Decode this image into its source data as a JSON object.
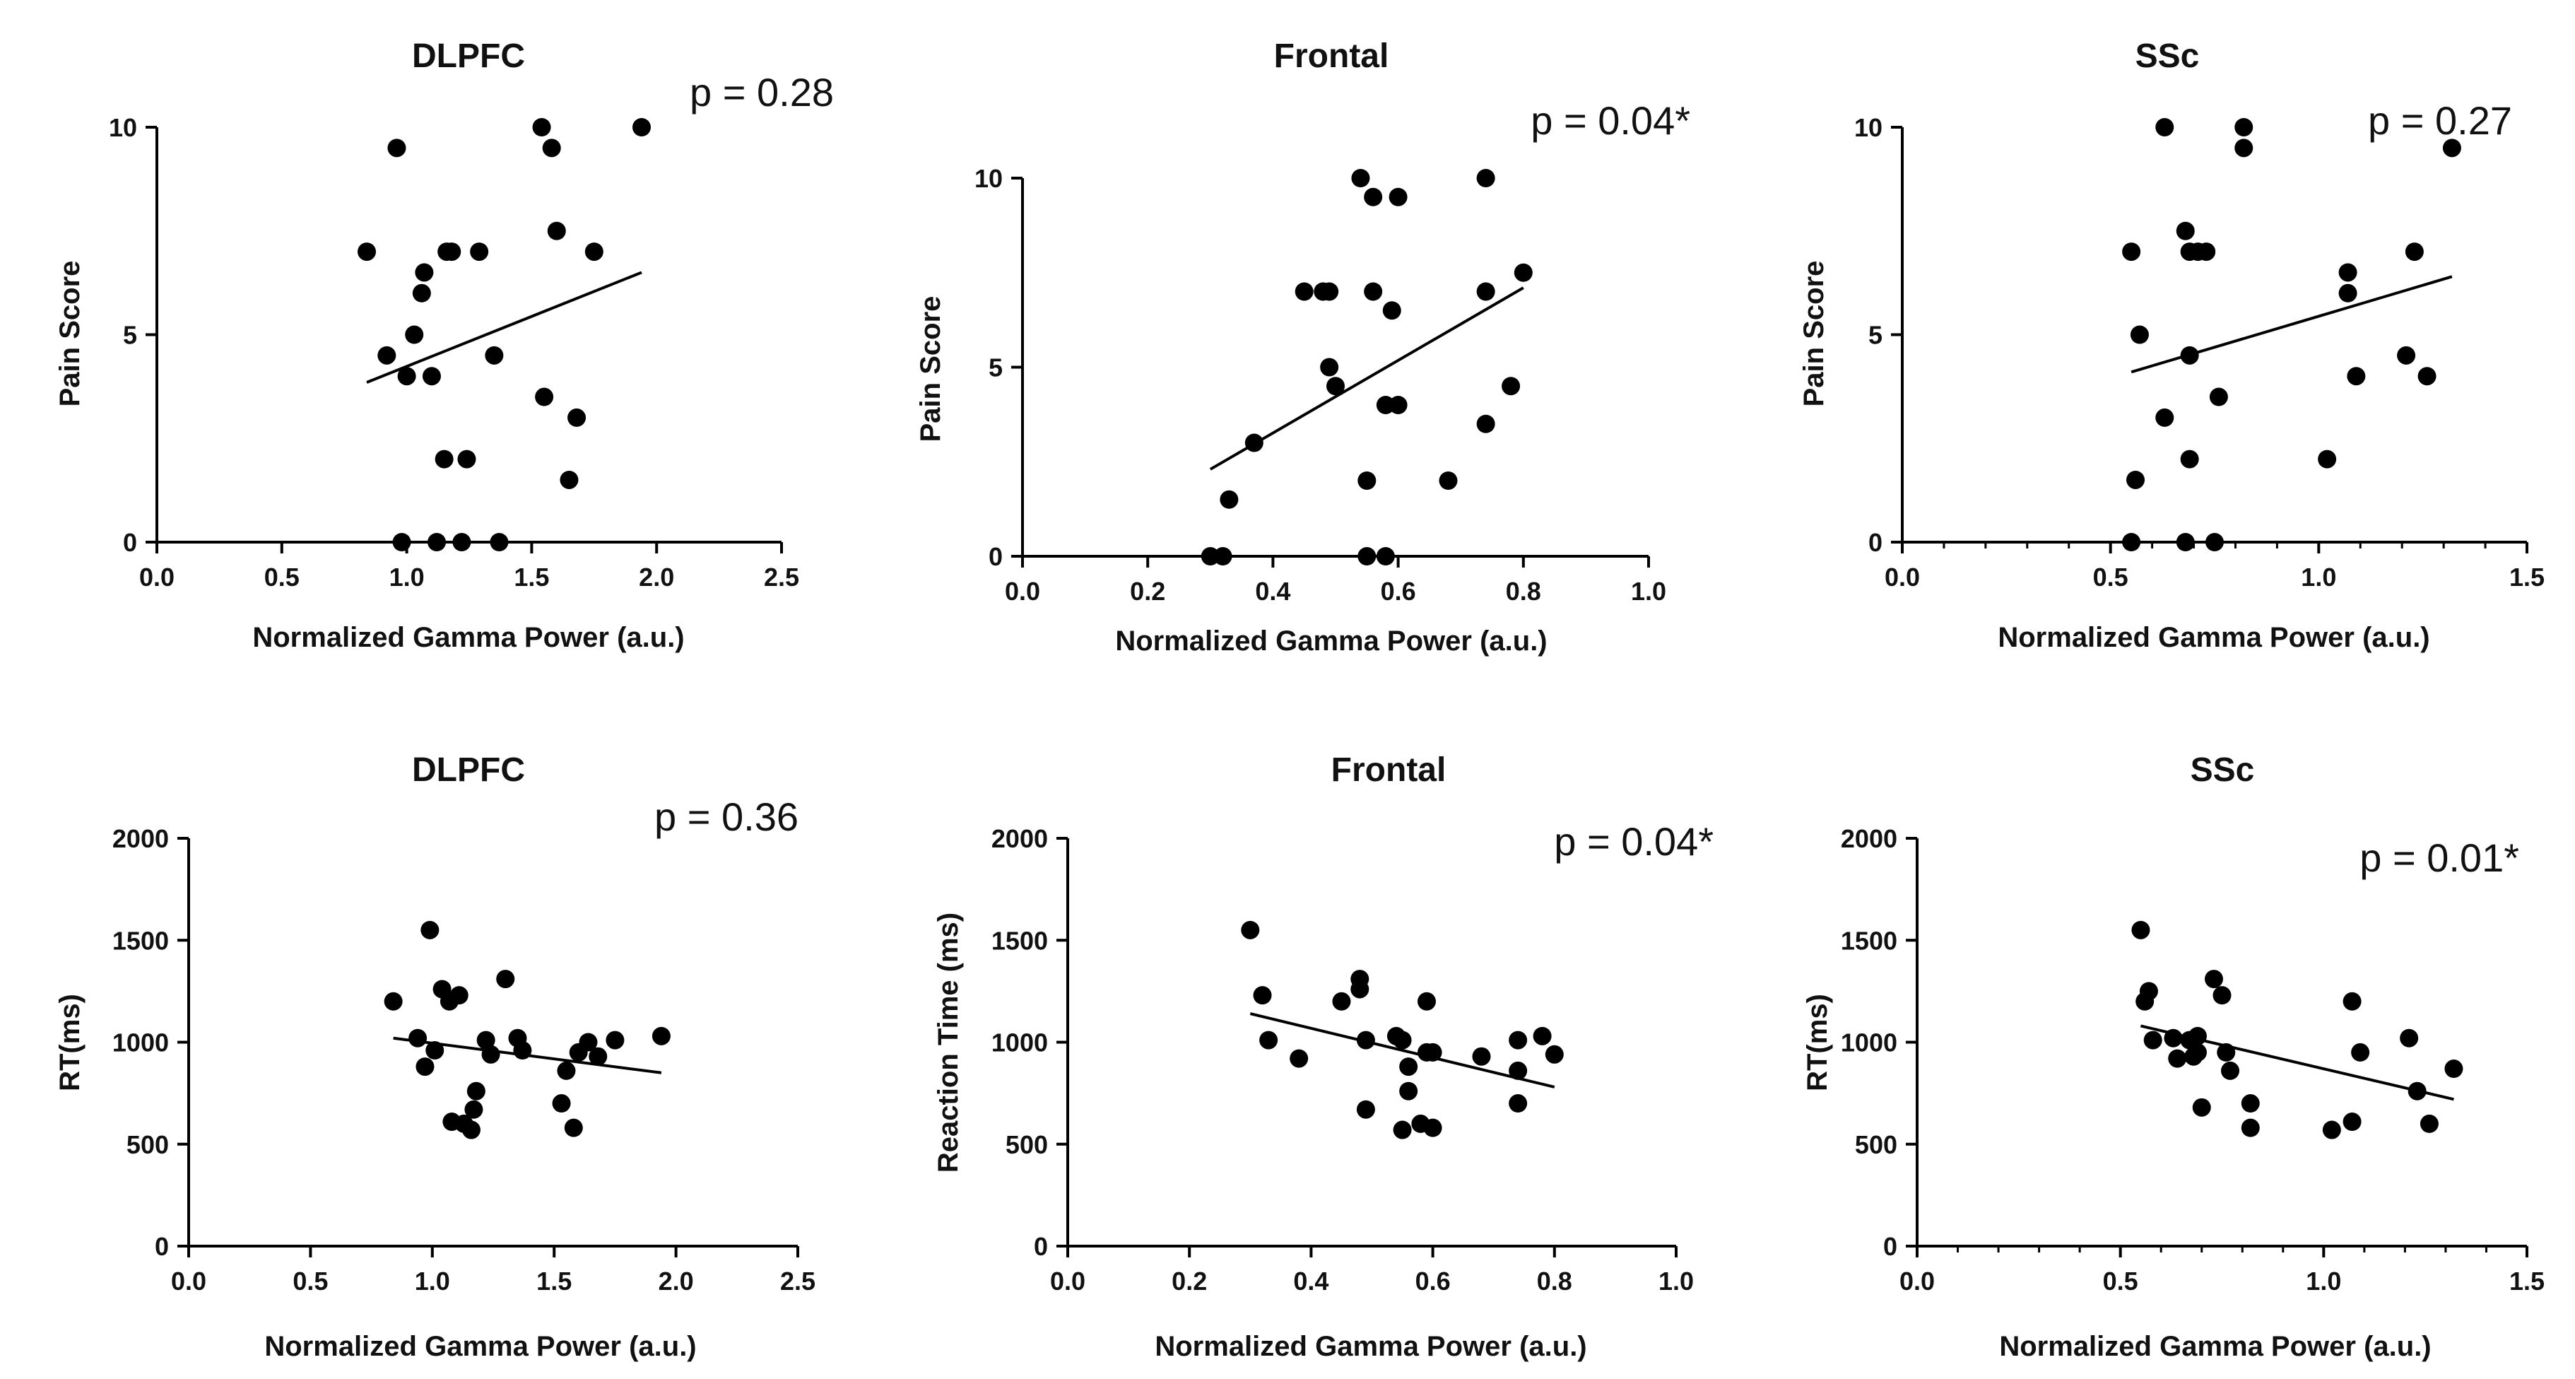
{
  "chart_data": [
    {
      "type": "scatter",
      "title": "DLPFC",
      "xlabel": "Normalized Gamma Power (a.u.)",
      "ylabel": "Pain Score",
      "annotation": "p = 0.28",
      "xlim": [
        0,
        2.5
      ],
      "ylim": [
        0,
        10
      ],
      "xticks": [
        "0.0",
        "0.5",
        "1.0",
        "1.5",
        "2.0",
        "2.5"
      ],
      "yticks": [
        "0",
        "5",
        "10"
      ],
      "points": [
        [
          0.84,
          7
        ],
        [
          0.92,
          4.5
        ],
        [
          0.96,
          9.5
        ],
        [
          0.98,
          0
        ],
        [
          1.0,
          4
        ],
        [
          1.03,
          5
        ],
        [
          1.06,
          6
        ],
        [
          1.07,
          6.5
        ],
        [
          1.1,
          4
        ],
        [
          1.12,
          0
        ],
        [
          1.15,
          2
        ],
        [
          1.16,
          7
        ],
        [
          1.18,
          7
        ],
        [
          1.22,
          0
        ],
        [
          1.24,
          2
        ],
        [
          1.29,
          7
        ],
        [
          1.35,
          4.5
        ],
        [
          1.37,
          0
        ],
        [
          1.54,
          10
        ],
        [
          1.55,
          3.5
        ],
        [
          1.58,
          9.5
        ],
        [
          1.6,
          7.5
        ],
        [
          1.65,
          1.5
        ],
        [
          1.68,
          3
        ],
        [
          1.75,
          7
        ],
        [
          1.94,
          10
        ]
      ],
      "fit": [
        [
          0.84,
          3.85
        ],
        [
          1.94,
          6.5
        ]
      ]
    },
    {
      "type": "scatter",
      "title": "Frontal",
      "xlabel": "Normalized Gamma Power (a.u.)",
      "ylabel": "Pain Score",
      "annotation": "p = 0.04*",
      "xlim": [
        0,
        1.0
      ],
      "ylim": [
        0,
        10
      ],
      "xticks": [
        "0.0",
        "0.2",
        "0.4",
        "0.6",
        "0.8",
        "1.0"
      ],
      "yticks": [
        "0",
        "5",
        "10"
      ],
      "points": [
        [
          0.3,
          0
        ],
        [
          0.32,
          0
        ],
        [
          0.33,
          1.5
        ],
        [
          0.37,
          3
        ],
        [
          0.45,
          7
        ],
        [
          0.48,
          7
        ],
        [
          0.49,
          5
        ],
        [
          0.49,
          7
        ],
        [
          0.5,
          4.5
        ],
        [
          0.54,
          10
        ],
        [
          0.55,
          0
        ],
        [
          0.55,
          2
        ],
        [
          0.56,
          9.5
        ],
        [
          0.56,
          7
        ],
        [
          0.58,
          0
        ],
        [
          0.58,
          4
        ],
        [
          0.59,
          6.5
        ],
        [
          0.6,
          9.5
        ],
        [
          0.6,
          4
        ],
        [
          0.68,
          2
        ],
        [
          0.74,
          10
        ],
        [
          0.74,
          7
        ],
        [
          0.74,
          3.5
        ],
        [
          0.78,
          4.5
        ],
        [
          0.8,
          7.5
        ]
      ],
      "fit": [
        [
          0.3,
          2.3
        ],
        [
          0.8,
          7.1
        ]
      ]
    },
    {
      "type": "scatter",
      "title": "SSc",
      "xlabel": "Normalized Gamma Power (a.u.)",
      "ylabel": "Pain Score",
      "annotation": "p = 0.27",
      "xlim": [
        0,
        1.5
      ],
      "ylim": [
        0,
        10
      ],
      "xticks": [
        "0.0",
        "0.5",
        "1.0",
        "1.5"
      ],
      "yticks": [
        "0",
        "5",
        "10"
      ],
      "points": [
        [
          0.55,
          0
        ],
        [
          0.55,
          7
        ],
        [
          0.56,
          1.5
        ],
        [
          0.57,
          5
        ],
        [
          0.63,
          10
        ],
        [
          0.63,
          3
        ],
        [
          0.68,
          7.5
        ],
        [
          0.68,
          0
        ],
        [
          0.69,
          4.5
        ],
        [
          0.69,
          2
        ],
        [
          0.69,
          7
        ],
        [
          0.71,
          7
        ],
        [
          0.73,
          7
        ],
        [
          0.75,
          0
        ],
        [
          0.76,
          3.5
        ],
        [
          0.82,
          10
        ],
        [
          0.82,
          9.5
        ],
        [
          1.02,
          2
        ],
        [
          1.07,
          6.5
        ],
        [
          1.07,
          6
        ],
        [
          1.09,
          4
        ],
        [
          1.21,
          4.5
        ],
        [
          1.23,
          7
        ],
        [
          1.26,
          4
        ],
        [
          1.32,
          9.5
        ]
      ],
      "fit": [
        [
          0.55,
          4.1
        ],
        [
          1.32,
          6.4
        ]
      ]
    },
    {
      "type": "scatter",
      "title": "DLPFC",
      "xlabel": "Normalized Gamma Power (a.u.)",
      "ylabel": "RT(ms)",
      "annotation": "p = 0.36",
      "xlim": [
        0,
        2.5
      ],
      "ylim": [
        0,
        2000
      ],
      "xticks": [
        "0.0",
        "0.5",
        "1.0",
        "1.5",
        "2.0",
        "2.5"
      ],
      "yticks": [
        "0",
        "500",
        "1000",
        "1500",
        "2000"
      ],
      "points": [
        [
          0.84,
          1200
        ],
        [
          0.94,
          1020
        ],
        [
          0.97,
          880
        ],
        [
          0.99,
          1550
        ],
        [
          1.01,
          960
        ],
        [
          1.04,
          1260
        ],
        [
          1.07,
          1200
        ],
        [
          1.08,
          610
        ],
        [
          1.11,
          1230
        ],
        [
          1.13,
          600
        ],
        [
          1.16,
          570
        ],
        [
          1.17,
          670
        ],
        [
          1.18,
          760
        ],
        [
          1.22,
          1010
        ],
        [
          1.24,
          940
        ],
        [
          1.3,
          1310
        ],
        [
          1.35,
          1020
        ],
        [
          1.37,
          960
        ],
        [
          1.53,
          700
        ],
        [
          1.55,
          860
        ],
        [
          1.58,
          580
        ],
        [
          1.6,
          950
        ],
        [
          1.64,
          1000
        ],
        [
          1.68,
          930
        ],
        [
          1.75,
          1010
        ],
        [
          1.94,
          1030
        ]
      ],
      "fit": [
        [
          0.84,
          1020
        ],
        [
          1.94,
          850
        ]
      ]
    },
    {
      "type": "scatter",
      "title": "Frontal",
      "xlabel": "Normalized Gamma Power (a.u.)",
      "ylabel": "Reaction Time (ms)",
      "annotation": "p = 0.04*",
      "xlim": [
        0,
        1.0
      ],
      "ylim": [
        0,
        2000
      ],
      "xticks": [
        "0.0",
        "0.2",
        "0.4",
        "0.6",
        "0.8",
        "1.0"
      ],
      "yticks": [
        "0",
        "500",
        "1000",
        "1500",
        "2000"
      ],
      "points": [
        [
          0.3,
          1550
        ],
        [
          0.32,
          1230
        ],
        [
          0.33,
          1010
        ],
        [
          0.38,
          920
        ],
        [
          0.45,
          1200
        ],
        [
          0.48,
          1310
        ],
        [
          0.48,
          1260
        ],
        [
          0.49,
          1010
        ],
        [
          0.49,
          670
        ],
        [
          0.54,
          1030
        ],
        [
          0.55,
          1010
        ],
        [
          0.55,
          570
        ],
        [
          0.56,
          880
        ],
        [
          0.56,
          760
        ],
        [
          0.58,
          600
        ],
        [
          0.59,
          1200
        ],
        [
          0.59,
          950
        ],
        [
          0.6,
          950
        ],
        [
          0.6,
          580
        ],
        [
          0.68,
          930
        ],
        [
          0.74,
          1010
        ],
        [
          0.74,
          860
        ],
        [
          0.74,
          700
        ],
        [
          0.78,
          1030
        ],
        [
          0.8,
          940
        ]
      ],
      "fit": [
        [
          0.3,
          1140
        ],
        [
          0.8,
          780
        ]
      ]
    },
    {
      "type": "scatter",
      "title": "SSc",
      "xlabel": "Normalized Gamma Power (a.u.)",
      "ylabel": "RT(ms)",
      "annotation": "p = 0.01*",
      "xlim": [
        0,
        1.5
      ],
      "ylim": [
        0,
        2000
      ],
      "xticks": [
        "0.0",
        "0.5",
        "1.0",
        "1.5"
      ],
      "yticks": [
        "0",
        "500",
        "1000",
        "1500",
        "2000"
      ],
      "points": [
        [
          0.55,
          1550
        ],
        [
          0.56,
          1200
        ],
        [
          0.57,
          1250
        ],
        [
          0.58,
          1010
        ],
        [
          0.63,
          1020
        ],
        [
          0.64,
          920
        ],
        [
          0.67,
          1010
        ],
        [
          0.68,
          930
        ],
        [
          0.69,
          1030
        ],
        [
          0.69,
          950
        ],
        [
          0.7,
          680
        ],
        [
          0.73,
          1310
        ],
        [
          0.75,
          1230
        ],
        [
          0.76,
          950
        ],
        [
          0.77,
          860
        ],
        [
          0.82,
          700
        ],
        [
          0.82,
          580
        ],
        [
          1.02,
          570
        ],
        [
          1.07,
          610
        ],
        [
          1.07,
          1200
        ],
        [
          1.09,
          950
        ],
        [
          1.21,
          1020
        ],
        [
          1.23,
          760
        ],
        [
          1.26,
          600
        ],
        [
          1.32,
          870
        ]
      ],
      "fit": [
        [
          0.55,
          1080
        ],
        [
          1.32,
          720
        ]
      ]
    }
  ]
}
